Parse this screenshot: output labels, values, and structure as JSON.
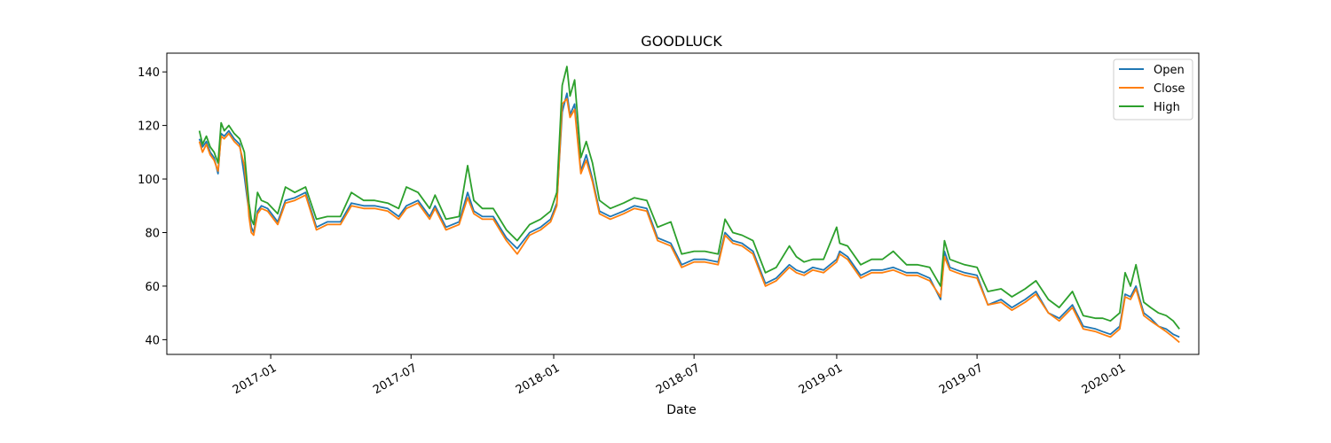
{
  "chart_data": {
    "type": "line",
    "title": "GOODLUCK",
    "xlabel": "Date",
    "ylabel": "",
    "x_ticks": [
      {
        "date": "2017-01-01",
        "label": "2017-01"
      },
      {
        "date": "2017-07-01",
        "label": "2017-07"
      },
      {
        "date": "2018-01-01",
        "label": "2018-01"
      },
      {
        "date": "2018-07-01",
        "label": "2018-07"
      },
      {
        "date": "2019-01-01",
        "label": "2019-01"
      },
      {
        "date": "2019-07-01",
        "label": "2019-07"
      },
      {
        "date": "2020-01-01",
        "label": "2020-01"
      }
    ],
    "y_ticks": [
      40,
      60,
      80,
      100,
      120,
      140
    ],
    "xlim": [
      "2016-08-20",
      "2020-04-12"
    ],
    "ylim": [
      34.5,
      147
    ],
    "legend": {
      "position": "top-right",
      "entries": [
        "Open",
        "Close",
        "High"
      ]
    },
    "colors": {
      "Open": "#1f77b4",
      "Close": "#ff7f0e",
      "High": "#2ca02c"
    },
    "x": [
      "2016-10-01",
      "2016-10-05",
      "2016-10-10",
      "2016-10-15",
      "2016-10-20",
      "2016-10-25",
      "2016-10-29",
      "2016-11-02",
      "2016-11-08",
      "2016-11-15",
      "2016-11-22",
      "2016-11-28",
      "2016-12-02",
      "2016-12-04",
      "2016-12-07",
      "2016-12-10",
      "2016-12-15",
      "2016-12-20",
      "2016-12-28",
      "2017-01-10",
      "2017-01-20",
      "2017-02-01",
      "2017-02-15",
      "2017-03-01",
      "2017-03-15",
      "2017-04-01",
      "2017-04-15",
      "2017-05-01",
      "2017-05-15",
      "2017-06-01",
      "2017-06-15",
      "2017-06-25",
      "2017-07-10",
      "2017-07-25",
      "2017-08-01",
      "2017-08-15",
      "2017-09-01",
      "2017-09-12",
      "2017-09-20",
      "2017-10-01",
      "2017-10-15",
      "2017-11-01",
      "2017-11-15",
      "2017-12-01",
      "2017-12-15",
      "2017-12-28",
      "2018-01-05",
      "2018-01-12",
      "2018-01-18",
      "2018-01-22",
      "2018-01-28",
      "2018-02-05",
      "2018-02-12",
      "2018-02-20",
      "2018-03-01",
      "2018-03-15",
      "2018-04-01",
      "2018-04-15",
      "2018-05-01",
      "2018-05-15",
      "2018-06-01",
      "2018-06-15",
      "2018-07-01",
      "2018-07-15",
      "2018-08-01",
      "2018-08-10",
      "2018-08-20",
      "2018-09-01",
      "2018-09-15",
      "2018-10-01",
      "2018-10-15",
      "2018-11-01",
      "2018-11-10",
      "2018-11-20",
      "2018-12-01",
      "2018-12-15",
      "2019-01-01",
      "2019-01-05",
      "2019-01-15",
      "2019-02-01",
      "2019-02-15",
      "2019-03-01",
      "2019-03-15",
      "2019-04-01",
      "2019-04-15",
      "2019-05-01",
      "2019-05-15",
      "2019-05-20",
      "2019-05-27",
      "2019-06-05",
      "2019-06-15",
      "2019-07-01",
      "2019-07-15",
      "2019-08-01",
      "2019-08-15",
      "2019-09-01",
      "2019-09-15",
      "2019-10-01",
      "2019-10-15",
      "2019-11-01",
      "2019-11-15",
      "2019-12-01",
      "2019-12-10",
      "2019-12-20",
      "2020-01-01",
      "2020-01-08",
      "2020-01-15",
      "2020-01-22",
      "2020-02-01",
      "2020-02-10",
      "2020-02-20",
      "2020-03-01",
      "2020-03-10",
      "2020-03-18"
    ],
    "series": [
      {
        "name": "Open",
        "values": [
          115,
          112,
          114,
          110,
          108,
          102,
          117,
          116,
          118,
          115,
          113,
          101,
          92,
          88,
          82,
          80,
          88,
          90,
          89,
          84,
          92,
          93,
          95,
          82,
          84,
          84,
          91,
          90,
          90,
          89,
          86,
          90,
          92,
          86,
          90,
          82,
          84,
          95,
          88,
          86,
          86,
          78,
          74,
          80,
          82,
          85,
          91,
          125,
          132,
          124,
          128,
          103,
          109,
          100,
          88,
          86,
          88,
          90,
          89,
          78,
          76,
          68,
          70,
          70,
          69,
          80,
          77,
          76,
          73,
          61,
          63,
          68,
          66,
          65,
          67,
          66,
          70,
          73,
          71,
          64,
          66,
          66,
          67,
          65,
          65,
          63,
          55,
          73,
          67,
          66,
          65,
          64,
          53,
          55,
          52,
          55,
          58,
          50,
          48,
          53,
          45,
          44,
          43,
          42,
          45,
          57,
          56,
          60,
          50,
          48,
          45,
          44,
          42,
          41
        ]
      },
      {
        "name": "Close",
        "values": [
          114,
          110,
          113,
          109,
          107,
          103,
          116,
          115,
          117,
          114,
          112,
          105,
          94,
          86,
          80,
          79,
          87,
          89,
          88,
          83,
          91,
          92,
          94,
          81,
          83,
          83,
          90,
          89,
          89,
          88,
          85,
          89,
          91,
          85,
          89,
          81,
          83,
          93,
          87,
          85,
          85,
          77,
          72,
          79,
          81,
          84,
          90,
          128,
          130,
          123,
          126,
          102,
          107,
          99,
          87,
          85,
          87,
          89,
          88,
          77,
          75,
          67,
          69,
          69,
          68,
          79,
          76,
          75,
          72,
          60,
          62,
          67,
          65,
          64,
          66,
          65,
          69,
          72,
          70,
          63,
          65,
          65,
          66,
          64,
          64,
          62,
          56,
          71,
          66,
          65,
          64,
          63,
          53,
          54,
          51,
          54,
          57,
          50,
          47,
          52,
          44,
          43,
          42,
          41,
          44,
          56,
          55,
          59,
          49,
          47,
          45,
          43,
          41,
          39
        ]
      },
      {
        "name": "High",
        "values": [
          118,
          113,
          116,
          112,
          110,
          106,
          121,
          118,
          120,
          117,
          115,
          110,
          97,
          91,
          85,
          83,
          95,
          92,
          91,
          87,
          97,
          95,
          97,
          85,
          86,
          86,
          95,
          92,
          92,
          91,
          89,
          97,
          95,
          89,
          94,
          85,
          86,
          105,
          92,
          89,
          89,
          81,
          77,
          83,
          85,
          88,
          95,
          135,
          142,
          131,
          137,
          108,
          114,
          106,
          92,
          89,
          91,
          93,
          92,
          82,
          84,
          72,
          73,
          73,
          72,
          85,
          80,
          79,
          77,
          65,
          67,
          75,
          71,
          69,
          70,
          70,
          82,
          76,
          75,
          68,
          70,
          70,
          73,
          68,
          68,
          67,
          60,
          77,
          70,
          69,
          68,
          67,
          58,
          59,
          56,
          59,
          62,
          55,
          52,
          58,
          49,
          48,
          48,
          47,
          50,
          65,
          60,
          68,
          54,
          52,
          50,
          49,
          47,
          44
        ]
      }
    ]
  }
}
